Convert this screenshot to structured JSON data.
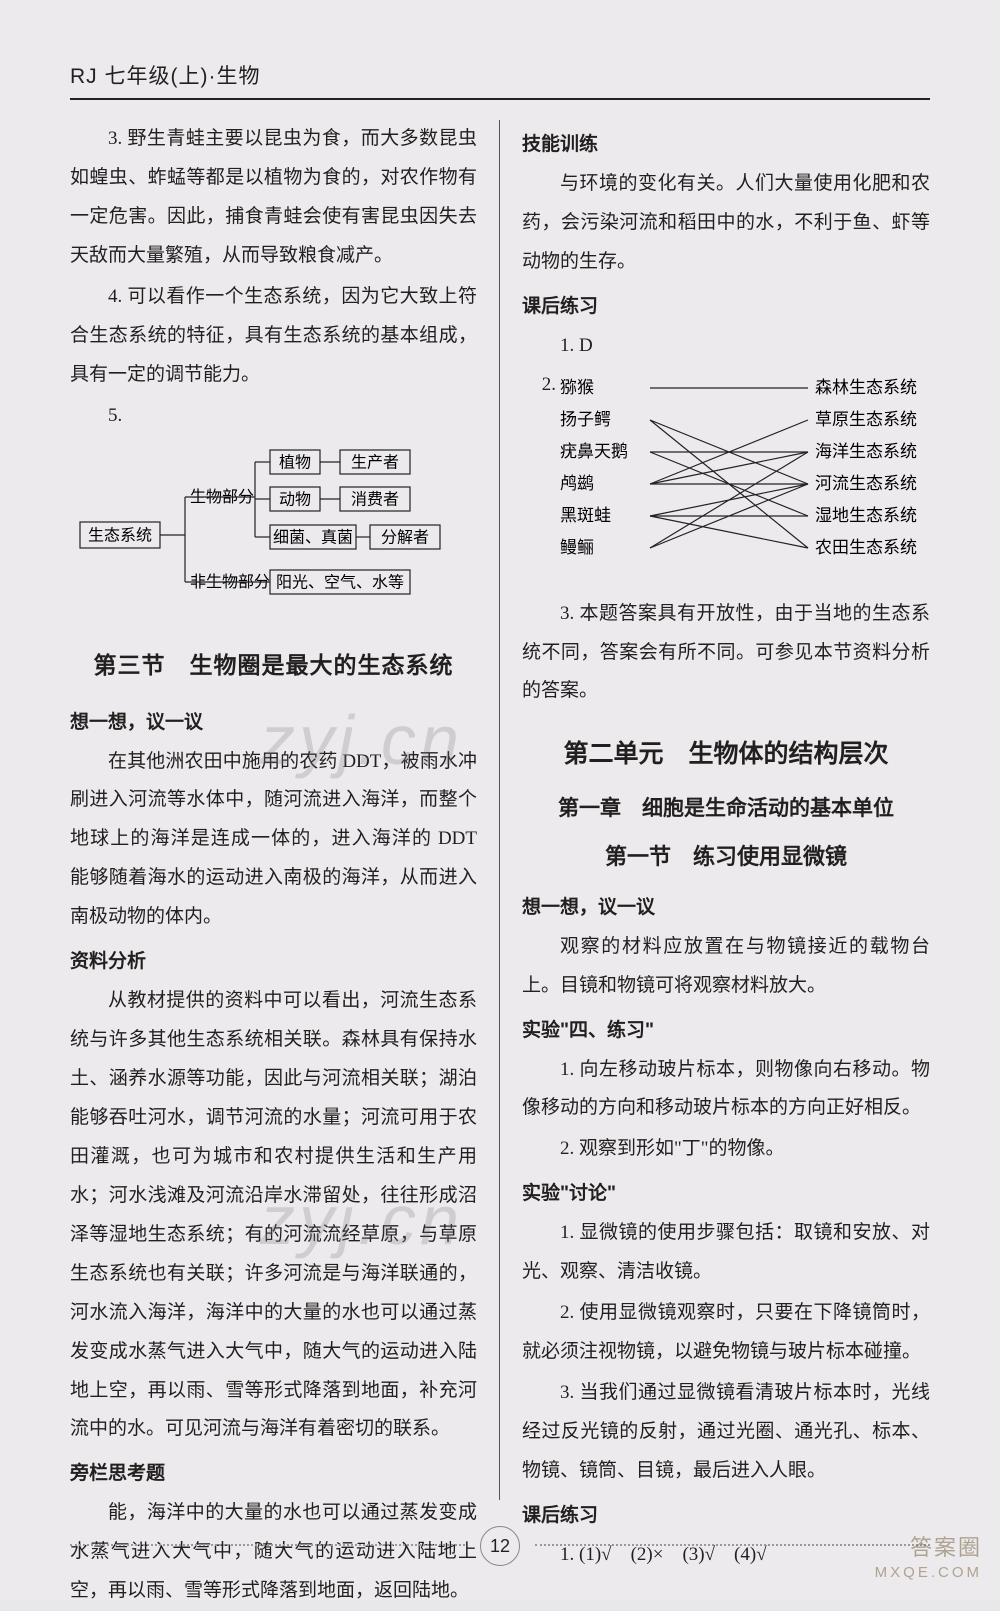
{
  "header": "RJ 七年级(上)·生物",
  "page_number": "12",
  "watermark": "zyj.cn",
  "corner": {
    "line1": "答案圈",
    "line2": "MXQE.COM"
  },
  "left": {
    "p3": "3. 野生青蛙主要以昆虫为食，而大多数昆虫如蝗虫、蚱蜢等都是以植物为食的，对农作物有一定危害。因此，捕食青蛙会使有害昆虫因失去天敌而大量繁殖，从而导致粮食减产。",
    "p4": "4. 可以看作一个生态系统，因为它大致上符合生态系统的特征，具有生态系统的基本组成，具有一定的调节能力。",
    "p5_label": "5.",
    "diagram5": {
      "root": "生态系统",
      "bio": "生物部分",
      "abio": "非生物部分",
      "plant": "植物",
      "producer": "生产者",
      "animal": "动物",
      "consumer": "消费者",
      "fungi": "细菌、真菌",
      "decomposer": "分解者",
      "abio_items": "阳光、空气、水等",
      "box_stroke": "#222222",
      "line_stroke": "#222222",
      "font_size": 16
    },
    "sec3_title": "第三节　生物圈是最大的生态系统",
    "think_label": "想一想，议一议",
    "think_body": "在其他洲农田中施用的农药 DDT，被雨水冲刷进入河流等水体中，随河流进入海洋，而整个地球上的海洋是连成一体的，进入海洋的 DDT 能够随着海水的运动进入南极的海洋，从而进入南极动物的体内。",
    "analysis_label": "资料分析",
    "analysis_body": "从教材提供的资料中可以看出，河流生态系统与许多其他生态系统相关联。森林具有保持水土、涵养水源等功能，因此与河流相关联；湖泊能够吞吐河水，调节河流的水量；河流可用于农田灌溉，也可为城市和农村提供生活和生产用水；河水浅滩及河流沿岸水滞留处，往往形成沼泽等湿地生态系统；有的河流流经草原，与草原生态系统也有关联；许多河流是与海洋联通的，河水流入海洋，海洋中的大量的水也可以通过蒸发变成水蒸气进入大气中，随大气的运动进入陆地上空，再以雨、雪等形式降落到地面，补充河流中的水。可见河流与海洋有着密切的联系。",
    "side_label": "旁栏思考题",
    "side_body": "能，海洋中的大量的水也可以通过蒸发变成水蒸气进入大气中，随大气的运动进入陆地上空，再以雨、雪等形式降落到地面，返回陆地。"
  },
  "right": {
    "skill_label": "技能训练",
    "skill_body": "与环境的变化有关。人们大量使用化肥和农药，会污染河流和稻田中的水，不利于鱼、虾等动物的生存。",
    "after_label": "课后练习",
    "q1": "1. D",
    "q2_label": "2.",
    "match": {
      "left_items": [
        "猕猴",
        "扬子鳄",
        "疣鼻天鹅",
        "鸬鹚",
        "黑斑蛙",
        "鳗鲡"
      ],
      "right_items": [
        "森林生态系统",
        "草原生态系统",
        "海洋生态系统",
        "河流生态系统",
        "湿地生态系统",
        "农田生态系统"
      ],
      "edges": [
        [
          0,
          0
        ],
        [
          1,
          3
        ],
        [
          1,
          5
        ],
        [
          2,
          2
        ],
        [
          2,
          4
        ],
        [
          3,
          1
        ],
        [
          3,
          2
        ],
        [
          3,
          3
        ],
        [
          4,
          3
        ],
        [
          4,
          4
        ],
        [
          4,
          5
        ],
        [
          5,
          2
        ],
        [
          5,
          3
        ]
      ],
      "line_stroke": "#222222",
      "font_size": 17
    },
    "q3": "3. 本题答案具有开放性，由于当地的生态系统不同，答案会有所不同。可参见本节资料分析的答案。",
    "unit2_title": "第二单元　生物体的结构层次",
    "chap1_title": "第一章　细胞是生命活动的基本单位",
    "sec1_title": "第一节　练习使用显微镜",
    "think2_label": "想一想，议一议",
    "think2_body": "观察的材料应放置在与物镜接近的载物台上。目镜和物镜可将观察材料放大。",
    "exp4_label": "实验\"四、练习\"",
    "exp4_p1": "1. 向左移动玻片标本，则物像向右移动。物像移动的方向和移动玻片标本的方向正好相反。",
    "exp4_p2": "2. 观察到形如\"丁\"的物像。",
    "disc_label": "实验\"讨论\"",
    "disc_p1": "1. 显微镜的使用步骤包括：取镜和安放、对光、观察、清洁收镜。",
    "disc_p2": "2. 使用显微镜观察时，只要在下降镜筒时，就必须注视物镜，以避免物镜与玻片标本碰撞。",
    "disc_p3": "3. 当我们通过显微镜看清玻片标本时，光线经过反光镜的反射，通过光圈、通光孔、标本、物镜、镜筒、目镜，最后进入人眼。",
    "after2_label": "课后练习",
    "after2_q1": "1. (1)√　(2)×　(3)√　(4)√"
  }
}
